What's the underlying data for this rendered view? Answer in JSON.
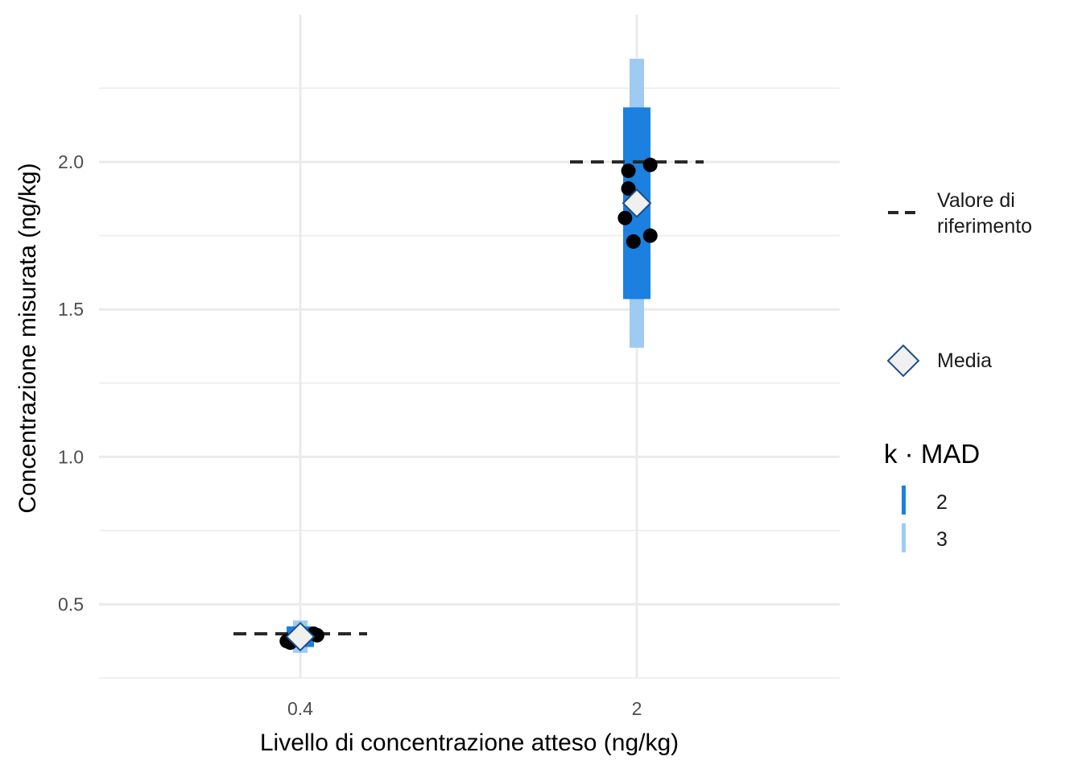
{
  "chart_data": {
    "type": "scatter",
    "xlabel": "Livello di concentrazione atteso (ng/kg)",
    "ylabel": "Concentrazione misurata (ng/kg)",
    "categories": [
      "0.4",
      "2"
    ],
    "ylim": [
      0.25,
      2.5
    ],
    "y_ticks": [
      "0.5",
      "1.0",
      "1.5",
      "2.0"
    ],
    "grid": true,
    "legend_position": "right",
    "groups": [
      {
        "category": "0.4",
        "reference_value": 0.4,
        "mean": 0.39,
        "intervals": {
          "k2": [
            0.355,
            0.425
          ],
          "k3": [
            0.335,
            0.445
          ]
        },
        "points": [
          {
            "jitter": -0.04,
            "y": 0.375
          },
          {
            "jitter": -0.02,
            "y": 0.38
          },
          {
            "jitter": 0.01,
            "y": 0.39
          },
          {
            "jitter": 0.04,
            "y": 0.4
          },
          {
            "jitter": 0.05,
            "y": 0.395
          },
          {
            "jitter": -0.03,
            "y": 0.37
          }
        ]
      },
      {
        "category": "2",
        "reference_value": 2.0,
        "mean": 1.86,
        "intervals": {
          "k2": [
            1.535,
            2.185
          ],
          "k3": [
            1.37,
            2.35
          ]
        },
        "points": [
          {
            "jitter": -0.025,
            "y": 1.97
          },
          {
            "jitter": 0.04,
            "y": 1.99
          },
          {
            "jitter": -0.025,
            "y": 1.91
          },
          {
            "jitter": -0.035,
            "y": 1.81
          },
          {
            "jitter": -0.01,
            "y": 1.73
          },
          {
            "jitter": 0.04,
            "y": 1.75
          }
        ]
      }
    ],
    "legend": {
      "reference_label": "Valore di riferimento",
      "reference_lines": [
        "Valore di",
        "riferimento"
      ],
      "mean_label": "Media",
      "mad_title": "k · MAD",
      "mad_items": [
        {
          "label": "2",
          "color": "#1b80e0"
        },
        {
          "label": "3",
          "color": "#9ecbf2"
        }
      ]
    },
    "colors": {
      "k2": "#1b80e0",
      "k3": "#9ecbf2",
      "point": "#000000",
      "mean_fill": "#f0f0f0",
      "mean_stroke": "#1f4e89",
      "reference_line": "#262626",
      "grid": "#ebebeb"
    }
  }
}
